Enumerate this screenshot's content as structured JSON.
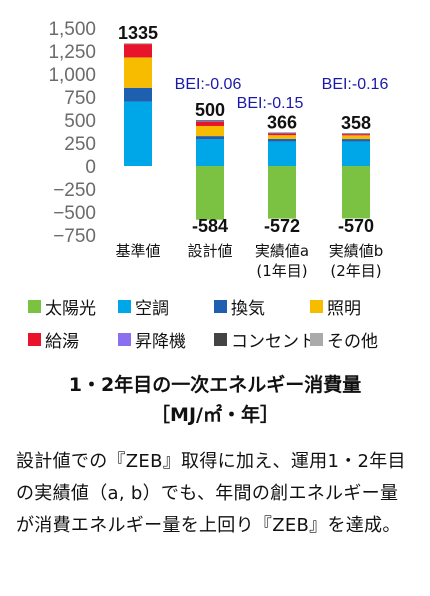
{
  "chart_data": {
    "type": "bar",
    "stacked": true,
    "categories": [
      "基準値",
      "設計値",
      "実績値a\n(1年目)",
      "実績値b\n(2年目)"
    ],
    "ylim": [
      -750,
      1500
    ],
    "yticks": [
      1500,
      1250,
      1000,
      750,
      500,
      250,
      0,
      -250,
      -500,
      -750
    ],
    "ytick_labels": [
      "1,500",
      "1,250",
      "1,000",
      "750",
      "500",
      "250",
      "0",
      "−250",
      "−500",
      "−750"
    ],
    "grid": false,
    "series": [
      {
        "name": "太陽光",
        "color": "#7cc242",
        "values": [
          0,
          -584,
          -572,
          -570
        ]
      },
      {
        "name": "空調",
        "color": "#00a7e8",
        "values": [
          700,
          290,
          265,
          265
        ]
      },
      {
        "name": "換気",
        "color": "#1f5fb0",
        "values": [
          150,
          35,
          30,
          28
        ]
      },
      {
        "name": "照明",
        "color": "#f7bc00",
        "values": [
          330,
          110,
          40,
          40
        ]
      },
      {
        "name": "給湯",
        "color": "#e8142c",
        "values": [
          145,
          45,
          18,
          14
        ]
      },
      {
        "name": "昇降機",
        "color": "#8b6ff0",
        "values": [
          0,
          5,
          5,
          4
        ]
      },
      {
        "name": "コンセント",
        "color": "#444444",
        "values": [
          0,
          10,
          6,
          5
        ]
      },
      {
        "name": "その他",
        "color": "#aaaaaa",
        "values": [
          10,
          5,
          2,
          2
        ]
      }
    ],
    "totals": [
      1335,
      500,
      366,
      358
    ],
    "total_labels": [
      "1335",
      "500",
      "366",
      "358"
    ],
    "generation_labels": [
      "",
      "-584",
      "-572",
      "-570"
    ],
    "bei_labels": [
      "",
      "BEI:-0.06",
      "BEI:-0.15",
      "BEI:-0.16"
    ]
  },
  "caption": {
    "line1": "1・2年目の一次エネルギー消費量",
    "line2": "［MJ/㎡・年］"
  },
  "description": "設計値での『ZEB』取得に加え、運用1・2年目の実績値（a, b）でも、年間の創エネルギー量が消費エネルギー量を上回り『ZEB』を達成。"
}
